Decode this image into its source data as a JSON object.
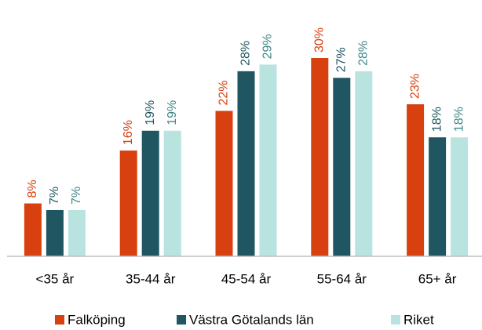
{
  "chart_data": {
    "type": "bar",
    "categories": [
      "<35 år",
      "35-44 år",
      "45-54 år",
      "55-64 år",
      "65+ år"
    ],
    "series": [
      {
        "name": "Falköping",
        "color": "#d9400f",
        "label_color": "#d9400f",
        "values": [
          8,
          16,
          22,
          30,
          23
        ],
        "value_labels": [
          "8%",
          "16%",
          "22%",
          "30%",
          "23%"
        ]
      },
      {
        "name": "Västra Götalands län",
        "color": "#1f5661",
        "label_color": "#1f5661",
        "values": [
          7,
          19,
          28,
          27,
          18
        ],
        "value_labels": [
          "7%",
          "19%",
          "28%",
          "27%",
          "18%"
        ]
      },
      {
        "name": "Riket",
        "color": "#b9e3df",
        "label_color": "#3f8587",
        "values": [
          7,
          19,
          29,
          28,
          18
        ],
        "value_labels": [
          "7%",
          "19%",
          "29%",
          "28%",
          "18%"
        ]
      }
    ],
    "legend": "bottom"
  }
}
